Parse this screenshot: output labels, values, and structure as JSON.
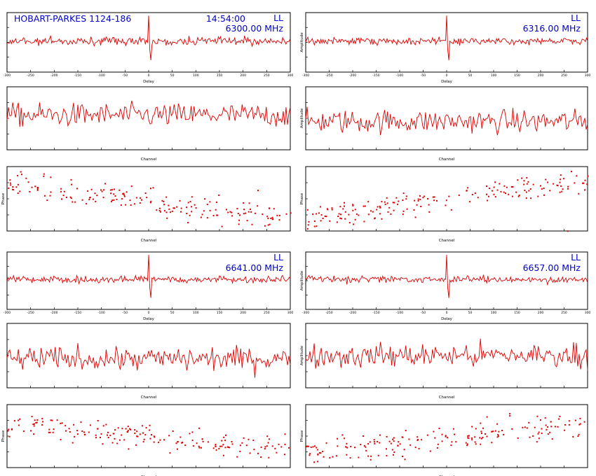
{
  "header": {
    "baseline": "HOBART-PARKES 1124-186",
    "time": "14:54:00",
    "polarization": "LL"
  },
  "colors": {
    "trace": "#dd0000",
    "annotation": "#0000cc",
    "axis": "#000000"
  },
  "chart_data": [
    {
      "type": "line",
      "band": 1,
      "panel": "delay",
      "frequency": "6300.00 MHz",
      "xlabel": "Delay",
      "ylabel": "",
      "x_ticks": [
        "-300",
        "-250",
        "-200",
        "-150",
        "-100",
        "-50",
        "0",
        "50",
        "100",
        "150",
        "200",
        "250",
        "300"
      ],
      "spike_at": 0.5,
      "noise": 0.12,
      "spike_h": 1.0
    },
    {
      "type": "line",
      "band": 2,
      "panel": "delay",
      "frequency": "6316.00 MHz",
      "xlabel": "Delay",
      "ylabel": "Amplitude",
      "x_ticks": [
        "-300",
        "-250",
        "-200",
        "-150",
        "-100",
        "-50",
        "0",
        "50",
        "100",
        "150",
        "200",
        "250",
        "300"
      ],
      "spike_at": 0.5,
      "noise": 0.1,
      "spike_h": 1.0
    },
    {
      "type": "line",
      "band": 1,
      "panel": "channel",
      "xlabel": "Channel",
      "ylabel": "",
      "points": 200,
      "level": 0.55
    },
    {
      "type": "line",
      "band": 2,
      "panel": "channel",
      "xlabel": "Channel",
      "ylabel": "Amplitude",
      "points": 200,
      "level": 0.45
    },
    {
      "type": "scatter",
      "band": 1,
      "panel": "phase",
      "xlabel": "Channel",
      "ylabel": "Phase",
      "points": 180,
      "trend": [
        0.75,
        0.2
      ]
    },
    {
      "type": "scatter",
      "band": 2,
      "panel": "phase",
      "xlabel": "Channel",
      "ylabel": "Phase",
      "points": 180,
      "trend": [
        0.2,
        0.8
      ]
    },
    {
      "type": "line",
      "band": 3,
      "panel": "delay",
      "frequency": "6641.00 MHz",
      "xlabel": "Delay",
      "ylabel": "",
      "x_ticks": [
        "-300",
        "-250",
        "-200",
        "-150",
        "-100",
        "-50",
        "0",
        "50",
        "100",
        "150",
        "200",
        "250",
        "300"
      ],
      "spike_at": 0.5,
      "noise": 0.1,
      "spike_h": 1.0
    },
    {
      "type": "line",
      "band": 4,
      "panel": "delay",
      "frequency": "6657.00 MHz",
      "xlabel": "Delay",
      "ylabel": "Amplitude",
      "x_ticks": [
        "-300",
        "-250",
        "-200",
        "-150",
        "-100",
        "-50",
        "0",
        "50",
        "100",
        "150",
        "200",
        "250",
        "300"
      ],
      "spike_at": 0.5,
      "noise": 0.1,
      "spike_h": 1.0
    },
    {
      "type": "line",
      "band": 3,
      "panel": "channel",
      "xlabel": "Channel",
      "ylabel": "",
      "points": 200,
      "level": 0.45
    },
    {
      "type": "line",
      "band": 4,
      "panel": "channel",
      "xlabel": "Channel",
      "ylabel": "Amplitude",
      "points": 200,
      "level": 0.5
    },
    {
      "type": "scatter",
      "band": 3,
      "panel": "phase",
      "xlabel": "Channel",
      "ylabel": "Phase",
      "points": 180,
      "trend": [
        0.7,
        0.3
      ]
    },
    {
      "type": "scatter",
      "band": 4,
      "panel": "phase",
      "xlabel": "Channel",
      "ylabel": "Phase",
      "points": 180,
      "trend": [
        0.25,
        0.7
      ]
    }
  ]
}
